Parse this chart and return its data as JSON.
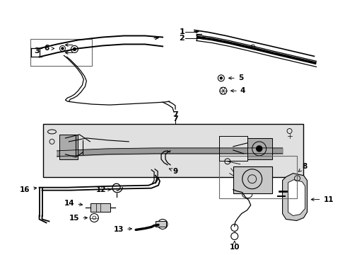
{
  "background_color": "#ffffff",
  "line_color": "#000000",
  "gray_fill": "#c8c8c8",
  "light_gray": "#e0e0e0",
  "fig_width": 4.89,
  "fig_height": 3.6,
  "dpi": 100
}
